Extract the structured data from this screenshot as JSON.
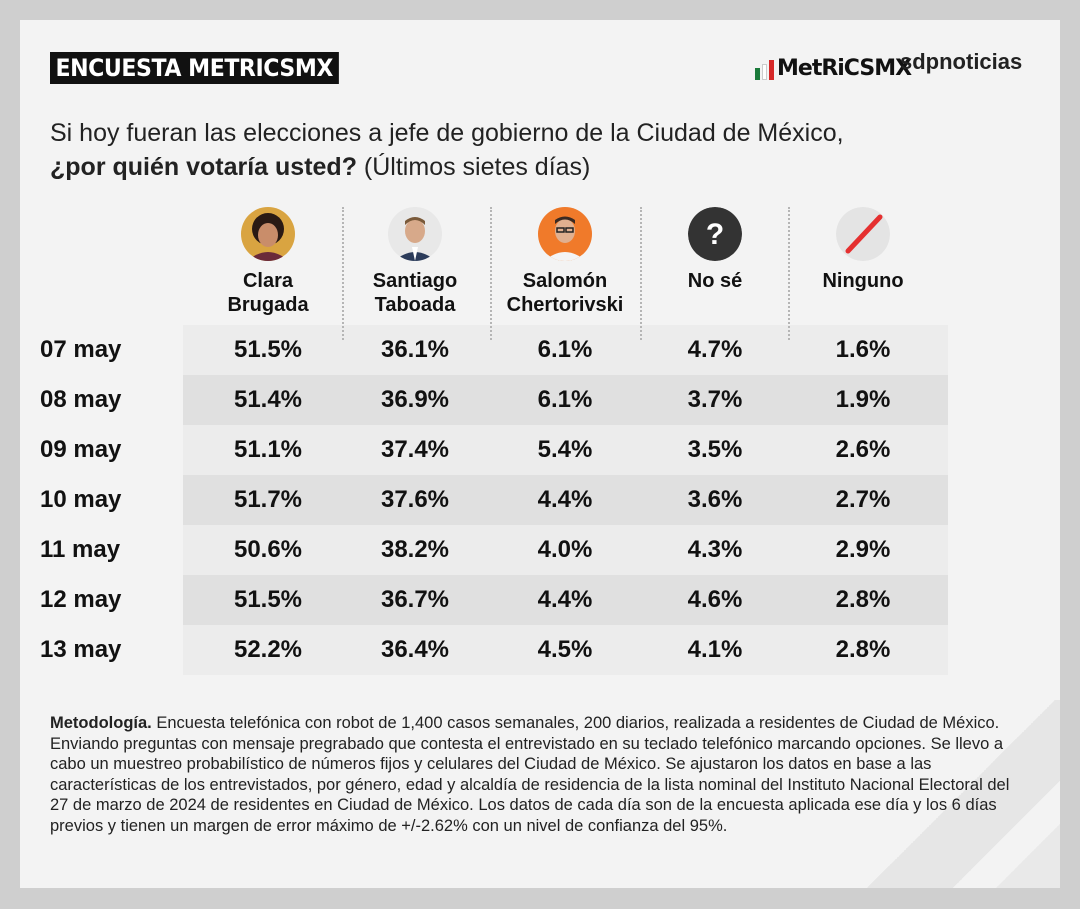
{
  "badge": "ENCUESTA METRICSMX",
  "logos": {
    "metrics": "MetRiCSMX",
    "sdp": "sdpnoticias"
  },
  "colors": {
    "green": "#1a7a3a",
    "red": "#d62828",
    "white": "#ffffff"
  },
  "question": {
    "line1": "Si hoy fueran las elecciones a jefe de gobierno de la Ciudad de México,",
    "bold": "¿por quién votaría usted?",
    "rest": " (Últimos sietes días)"
  },
  "chart_data": {
    "type": "table",
    "title": "Si hoy fueran las elecciones a jefe de gobierno de la Ciudad de México, ¿por quién votaría usted? (Últimos sietes días)",
    "columns": [
      {
        "line1": "Clara",
        "line2": "Brugada",
        "icon": "candidate-photo-clara-brugada"
      },
      {
        "line1": "Santiago",
        "line2": "Taboada",
        "icon": "candidate-photo-santiago-taboada"
      },
      {
        "line1": "Salomón",
        "line2": "Chertorivski",
        "icon": "candidate-photo-salomon-chertorivski"
      },
      {
        "line1": "No sé",
        "line2": "",
        "icon": "question-mark-icon"
      },
      {
        "line1": "Ninguno",
        "line2": "",
        "icon": "slash-icon"
      }
    ],
    "rows": [
      {
        "date": "07 may",
        "values": [
          "51.5%",
          "36.1%",
          "6.1%",
          "4.7%",
          "1.6%"
        ]
      },
      {
        "date": "08 may",
        "values": [
          "51.4%",
          "36.9%",
          "6.1%",
          "3.7%",
          "1.9%"
        ]
      },
      {
        "date": "09 may",
        "values": [
          "51.1%",
          "37.4%",
          "5.4%",
          "3.5%",
          "2.6%"
        ]
      },
      {
        "date": "10 may",
        "values": [
          "51.7%",
          "37.6%",
          "4.4%",
          "3.6%",
          "2.7%"
        ]
      },
      {
        "date": "11 may",
        "values": [
          "50.6%",
          "38.2%",
          "4.0%",
          "4.3%",
          "2.9%"
        ]
      },
      {
        "date": "12 may",
        "values": [
          "51.5%",
          "36.7%",
          "4.4%",
          "4.6%",
          "2.8%"
        ]
      },
      {
        "date": "13 may",
        "values": [
          "52.2%",
          "36.4%",
          "4.5%",
          "4.1%",
          "2.8%"
        ]
      }
    ]
  },
  "methodology": {
    "label": "Metodología.",
    "text": " Encuesta telefónica con robot de 1,400 casos semanales, 200 diarios, realizada a residentes de Ciudad de México. Enviando preguntas con mensaje pregrabado que contesta el entrevistado en su teclado telefónico marcando opciones. Se llevo a cabo un muestreo probabilístico de números fijos y celulares del Ciudad de México. Se ajustaron los datos en base a las características de los entrevistados, por género, edad y alcaldía de residencia de la lista nominal del Instituto Nacional Electoral del 27 de marzo de 2024 de residentes en Ciudad de México. Los datos de cada día son de la encuesta aplicada ese día y los 6 días previos y tienen un margen de error máximo de +/-2.62% con un nivel de confianza del 95%."
  }
}
